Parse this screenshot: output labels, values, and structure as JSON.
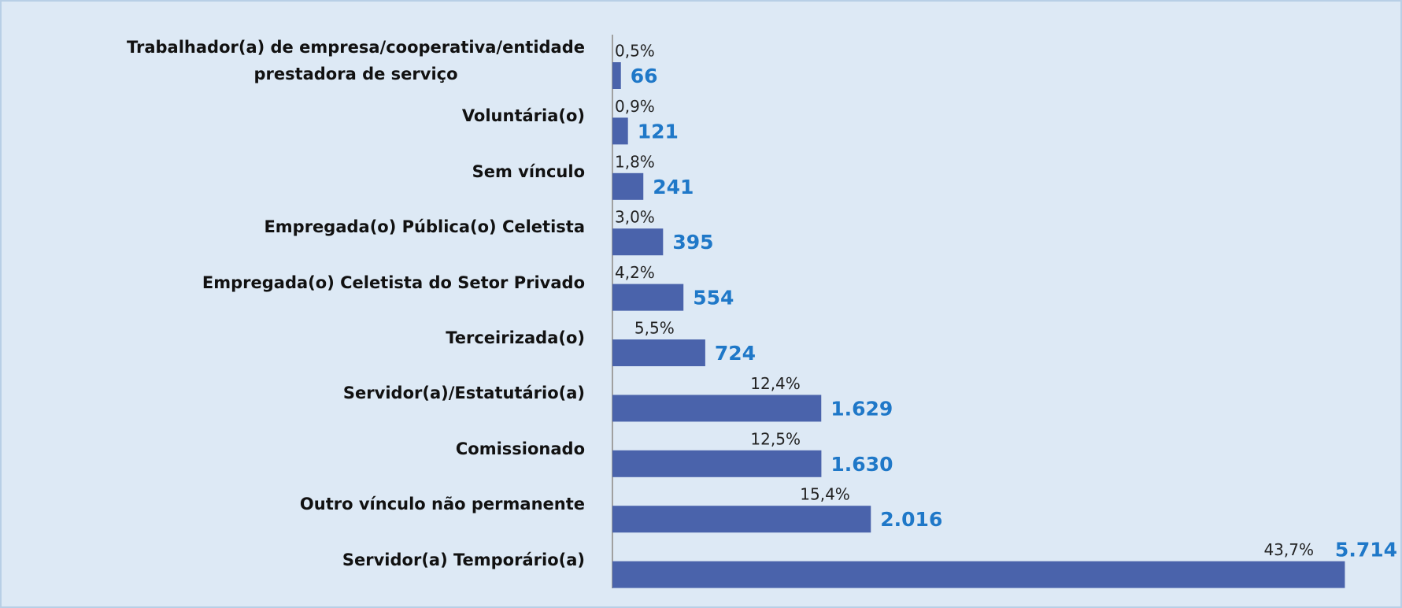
{
  "chart_data": {
    "type": "bar",
    "orientation": "horizontal",
    "categories": [
      "Trabalhador(a) de empresa/cooperativa/entidade\nprestadora de serviço",
      "Voluntária(o)",
      "Sem vínculo",
      "Empregada(o) Pública(o) Celetista",
      "Empregada(o) Celetista do Setor Privado",
      "Terceirizada(o)",
      "Servidor(a)/Estatutário(a)",
      "Comissionado",
      "Outro vínculo não permanente",
      "Servidor(a) Temporário(a)"
    ],
    "values": [
      66,
      121,
      241,
      395,
      554,
      724,
      1629,
      1630,
      2016,
      5714
    ],
    "value_labels": [
      "66",
      "121",
      "241",
      "395",
      "554",
      "724",
      "1.629",
      "1.630",
      "2.016",
      "5.714"
    ],
    "shares": [
      0.5,
      0.9,
      1.8,
      3.0,
      4.2,
      5.5,
      12.4,
      12.5,
      15.4,
      43.7
    ],
    "share_labels": [
      "0,5%",
      "0,9%",
      "1,8%",
      "3,0%",
      "4,2%",
      "5,5%",
      "12,4%",
      "12,5%",
      "15,4%",
      "43,7%"
    ],
    "color": "#4a63ab",
    "value_label_color": "#1f78c8",
    "xlim": [
      0,
      6000
    ]
  }
}
